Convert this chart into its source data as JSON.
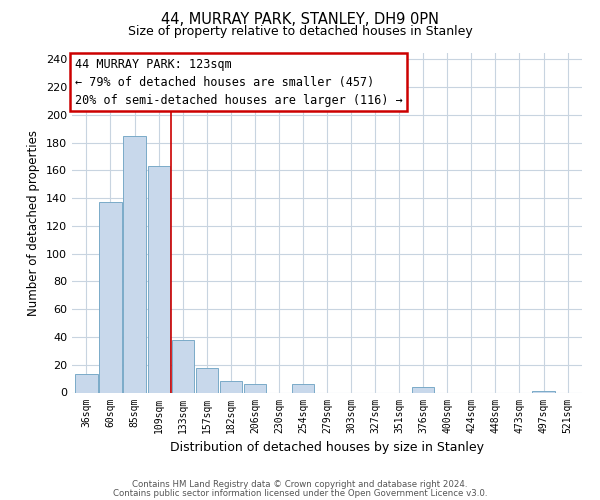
{
  "title": "44, MURRAY PARK, STANLEY, DH9 0PN",
  "subtitle": "Size of property relative to detached houses in Stanley",
  "xlabel": "Distribution of detached houses by size in Stanley",
  "ylabel": "Number of detached properties",
  "bar_color": "#c8d8eb",
  "bar_edge_color": "#7aaac8",
  "categories": [
    "36sqm",
    "60sqm",
    "85sqm",
    "109sqm",
    "133sqm",
    "157sqm",
    "182sqm",
    "206sqm",
    "230sqm",
    "254sqm",
    "279sqm",
    "303sqm",
    "327sqm",
    "351sqm",
    "376sqm",
    "400sqm",
    "424sqm",
    "448sqm",
    "473sqm",
    "497sqm",
    "521sqm"
  ],
  "values": [
    13,
    137,
    185,
    163,
    38,
    18,
    8,
    6,
    0,
    6,
    0,
    0,
    0,
    0,
    4,
    0,
    0,
    0,
    0,
    1,
    0
  ],
  "ylim": [
    0,
    245
  ],
  "yticks": [
    0,
    20,
    40,
    60,
    80,
    100,
    120,
    140,
    160,
    180,
    200,
    220,
    240
  ],
  "annotation_title": "44 MURRAY PARK: 123sqm",
  "annotation_line1": "← 79% of detached houses are smaller (457)",
  "annotation_line2": "20% of semi-detached houses are larger (116) →",
  "annotation_box_color": "#ffffff",
  "annotation_box_edge": "#cc0000",
  "red_line_x": 3.5,
  "footnote1": "Contains HM Land Registry data © Crown copyright and database right 2024.",
  "footnote2": "Contains public sector information licensed under the Open Government Licence v3.0.",
  "background_color": "#ffffff",
  "grid_color": "#c8d4e0"
}
